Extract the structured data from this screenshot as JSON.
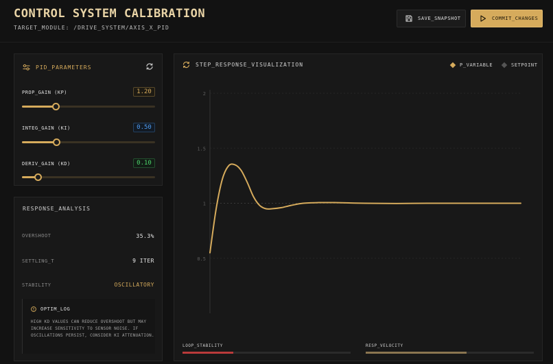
{
  "header": {
    "title": "CONTROL SYSTEM CALIBRATION",
    "subtitle": "TARGET_MODULE: /DRIVE_SYSTEM/AXIS_X_PID",
    "save_label": "SAVE_SNAPSHOT",
    "commit_label": "COMMIT_CHANGES"
  },
  "pid": {
    "title": "PID_PARAMETERS",
    "params": [
      {
        "label": "PROP_GAIN (KP)",
        "value": "1.20",
        "slider_fraction": 0.25
      },
      {
        "label": "INTEG_GAIN (KI)",
        "value": "0.50",
        "slider_fraction": 0.26
      },
      {
        "label": "DERIV_GAIN (KD)",
        "value": "0.10",
        "slider_fraction": 0.12
      }
    ]
  },
  "analysis": {
    "title": "RESPONSE_ANALYSIS",
    "stats": [
      {
        "label": "OVERSHOOT",
        "value": "35.3%"
      },
      {
        "label": "SETTLING_T",
        "value": "9 ITER"
      },
      {
        "label": "STABILITY",
        "value": "OSCILLATORY"
      }
    ],
    "log_title": "OPTIM_LOG",
    "log_text": "HIGH KD VALUES CAN REDUCE OVERSHOOT BUT MAY INCREASE SENSITIVITY TO SENSOR NOISE. IF OSCILLATIONS PERSIST, CONSIDER KI ATTENUATION."
  },
  "chart": {
    "title": "STEP_RESPONSE_VISUALIZATION",
    "legend_p": "P_VARIABLE",
    "legend_s": "SETPOINT",
    "y_ticks": [
      "2",
      "1.5",
      "1",
      "0.5"
    ],
    "loop_stability_label": "LOOP_STABILITY",
    "loop_stability_fraction": 0.3,
    "resp_velocity_label": "RESP_VELOCITY",
    "resp_velocity_fraction": 0.6
  },
  "colors": {
    "accent": "#d6ab5c",
    "ki": "#4f9bf0",
    "kd": "#4ed46b",
    "danger": "#b93a3a"
  },
  "chart_data": {
    "type": "line",
    "ylim": [
      0,
      2
    ],
    "setpoint": 1,
    "series": [
      {
        "name": "P_VARIABLE",
        "x": [
          0,
          0.02,
          0.04,
          0.06,
          0.08,
          0.1,
          0.12,
          0.14,
          0.16,
          0.18,
          0.2,
          0.23,
          0.26,
          0.3,
          0.35,
          0.4,
          0.5,
          0.6,
          0.7,
          0.8,
          0.9,
          1.0
        ],
        "y": [
          0.55,
          0.95,
          1.22,
          1.34,
          1.35,
          1.3,
          1.19,
          1.06,
          0.98,
          0.95,
          0.95,
          0.96,
          0.98,
          1.0,
          1.006,
          1.006,
          1.0,
          0.998,
          1.0,
          1.0,
          1.0,
          1.0
        ]
      }
    ]
  }
}
